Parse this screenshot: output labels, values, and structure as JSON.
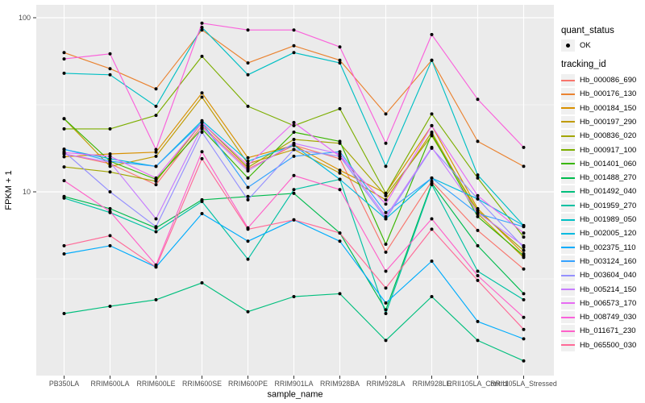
{
  "chart_data": {
    "type": "line",
    "title": "",
    "xlabel": "sample_name",
    "ylabel": "FPKM + 1",
    "y_scale": "log10",
    "y_tick_labels": [
      "100",
      "10"
    ],
    "y_tick_values": [
      100,
      10
    ],
    "y_minor_values": [
      31.62,
      3.162
    ],
    "ylim": [
      0.88,
      119
    ],
    "grid": true,
    "panel_bg": "#EBEBEB",
    "grid_color": "#FFFFFF",
    "point_color": "#000000",
    "tick_label_color": "#4D4D4D",
    "legend_position": "right",
    "categories": [
      "PB350LA",
      "RRIM600LA",
      "RRIM600LE",
      "RRIM600SE",
      "RRIM600PE",
      "RRIM901LA",
      "RRIM928BA",
      "RRIM928LA",
      "RRIM928LE",
      "RRII105LA_Control",
      "RRII105LA_Stressed"
    ],
    "legend": {
      "quant_status_title": "quant_status",
      "quant_status_items": [
        {
          "label": "OK",
          "marker": "point",
          "color": "#000000"
        }
      ],
      "tracking_id_title": "tracking_id"
    },
    "series": [
      {
        "name": "Hb_000086_690",
        "color": "#F8766D",
        "values": [
          16.5,
          14.5,
          11.0,
          24.0,
          13.5,
          18.5,
          15.5,
          4.5,
          11.5,
          6.0,
          3.6
        ]
      },
      {
        "name": "Hb_000176_130",
        "color": "#EA8331",
        "values": [
          63.0,
          51.0,
          39.0,
          85.0,
          55.0,
          69.0,
          57.0,
          28.0,
          57.0,
          19.5,
          14.0
        ]
      },
      {
        "name": "Hb_000184_150",
        "color": "#D89000",
        "values": [
          15.9,
          16.5,
          16.9,
          37.0,
          15.7,
          18.5,
          13.3,
          9.8,
          24.0,
          8.0,
          4.4
        ]
      },
      {
        "name": "Hb_000197_290",
        "color": "#C09B00",
        "values": [
          26.3,
          14.0,
          16.0,
          35.0,
          14.5,
          17.5,
          12.8,
          9.0,
          22.0,
          7.5,
          4.2
        ]
      },
      {
        "name": "Hb_000836_020",
        "color": "#A3A500",
        "values": [
          13.9,
          13.0,
          11.5,
          25.0,
          13.8,
          20.0,
          19.0,
          9.5,
          21.0,
          7.8,
          4.6
        ]
      },
      {
        "name": "Hb_000917_100",
        "color": "#7CAE00",
        "values": [
          23.0,
          23.0,
          27.5,
          60.0,
          31.0,
          24.0,
          30.0,
          9.8,
          28.0,
          12.0,
          5.5
        ]
      },
      {
        "name": "Hb_001401_060",
        "color": "#39B600",
        "values": [
          26.3,
          15.0,
          11.8,
          23.0,
          12.0,
          22.0,
          19.5,
          5.0,
          21.5,
          7.2,
          4.3
        ]
      },
      {
        "name": "Hb_001488_270",
        "color": "#00BB4E",
        "values": [
          9.4,
          8.0,
          6.2,
          9.0,
          9.4,
          9.8,
          5.8,
          2.1,
          11.2,
          4.9,
          2.6
        ]
      },
      {
        "name": "Hb_001492_040",
        "color": "#00BF7D",
        "values": [
          2.0,
          2.2,
          2.4,
          3.0,
          2.05,
          2.5,
          2.6,
          1.4,
          2.5,
          1.4,
          1.07
        ]
      },
      {
        "name": "Hb_001959_270",
        "color": "#00C1A3",
        "values": [
          9.2,
          7.6,
          5.9,
          8.8,
          4.1,
          10.3,
          11.8,
          2.0,
          11.0,
          3.5,
          2.4
        ]
      },
      {
        "name": "Hb_001989_050",
        "color": "#00BFC4",
        "values": [
          48.0,
          47.0,
          31.0,
          88.0,
          47.0,
          63.0,
          55.0,
          14.0,
          57.0,
          12.5,
          6.4
        ]
      },
      {
        "name": "Hb_002005_120",
        "color": "#00BAE0",
        "values": [
          17.5,
          15.5,
          14.0,
          25.6,
          15.0,
          18.5,
          11.8,
          7.0,
          12.0,
          9.1,
          6.4
        ]
      },
      {
        "name": "Hb_002375_110",
        "color": "#00ACFC",
        "values": [
          4.4,
          4.9,
          3.7,
          7.5,
          5.2,
          6.9,
          5.2,
          2.3,
          4.0,
          1.8,
          1.43
        ]
      },
      {
        "name": "Hb_003124_160",
        "color": "#35A2FF",
        "values": [
          17.6,
          15.0,
          14.0,
          25.0,
          10.6,
          16.0,
          17.0,
          7.6,
          12.0,
          7.5,
          6.3
        ]
      },
      {
        "name": "Hb_003604_040",
        "color": "#9590FF",
        "values": [
          17.0,
          10.0,
          6.3,
          22.0,
          9.0,
          17.5,
          16.0,
          7.0,
          17.8,
          9.1,
          4.8
        ]
      },
      {
        "name": "Hb_005214_150",
        "color": "#C77CFF",
        "values": [
          16.5,
          14.8,
          7.0,
          23.5,
          13.2,
          19.0,
          16.5,
          7.2,
          18.0,
          7.6,
          4.9
        ]
      },
      {
        "name": "Hb_006573_170",
        "color": "#E76BF3",
        "values": [
          16.8,
          16.0,
          12.0,
          25.0,
          14.2,
          25.0,
          16.0,
          8.5,
          24.0,
          9.5,
          5.8
        ]
      },
      {
        "name": "Hb_008749_030",
        "color": "#FA62DB",
        "values": [
          58.0,
          62.0,
          17.5,
          93.0,
          85.0,
          85.0,
          68.0,
          19.0,
          80.0,
          34.0,
          18.0
        ]
      },
      {
        "name": "Hb_011671_230",
        "color": "#FF61C9",
        "values": [
          11.6,
          7.7,
          3.8,
          17.0,
          6.2,
          12.4,
          10.3,
          3.5,
          7.0,
          3.3,
          1.9
        ]
      },
      {
        "name": "Hb_065500_030",
        "color": "#FF6A98",
        "values": [
          4.9,
          5.6,
          3.7,
          15.5,
          6.1,
          6.9,
          5.8,
          2.8,
          6.1,
          3.1,
          1.62
        ]
      }
    ]
  }
}
